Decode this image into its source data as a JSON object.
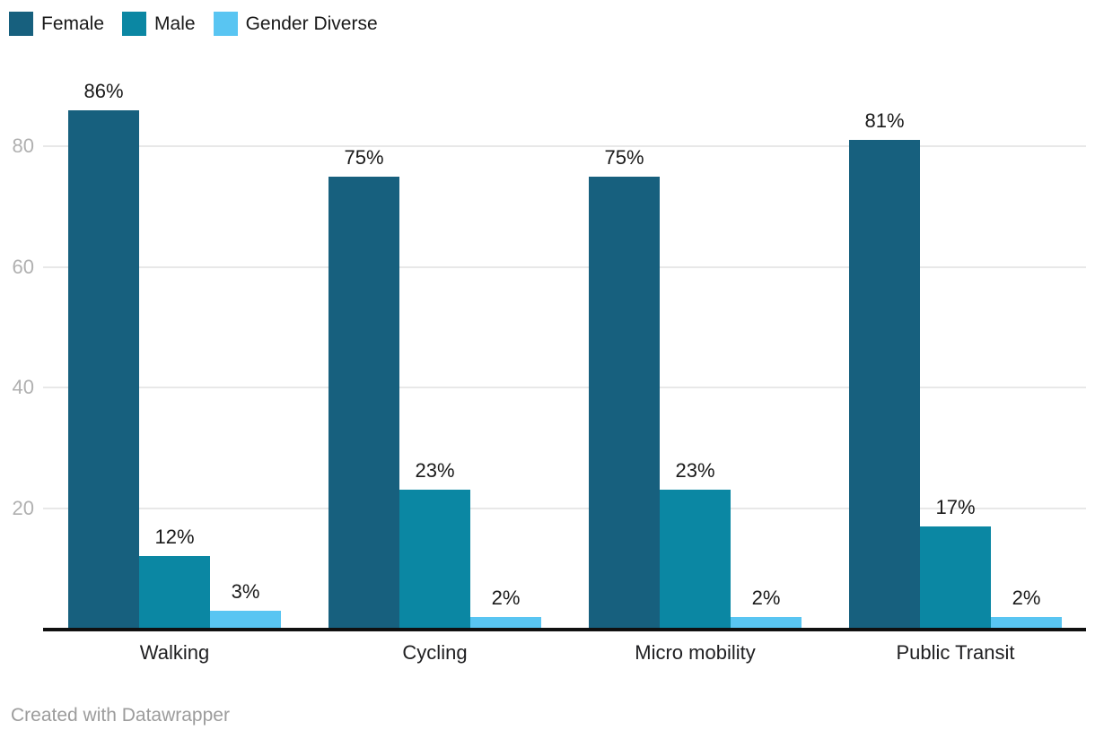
{
  "legend": {
    "items": [
      {
        "label": "Female",
        "color": "#17607e"
      },
      {
        "label": "Male",
        "color": "#0b87a3"
      },
      {
        "label": "Gender Diverse",
        "color": "#59c5f2"
      }
    ]
  },
  "footer": {
    "text": "Created with Datawrapper"
  },
  "colors": {
    "gridline": "#e8e8e8",
    "axis_line": "#101010",
    "y_tick_text": "#b0b0b0",
    "value_label_text": "#1a1a1a",
    "credit_text": "#9c9c9c"
  },
  "chart_data": {
    "type": "bar",
    "title": "",
    "categories": [
      "Walking",
      "Cycling",
      "Micro mobility",
      "Public Transit"
    ],
    "series": [
      {
        "name": "Female",
        "color": "#17607e",
        "values": [
          86,
          75,
          75,
          81
        ]
      },
      {
        "name": "Male",
        "color": "#0b87a3",
        "values": [
          12,
          23,
          23,
          17
        ]
      },
      {
        "name": "Gender Diverse",
        "color": "#59c5f2",
        "values": [
          3,
          2,
          2,
          2
        ]
      }
    ],
    "value_suffix": "%",
    "value_labels": true,
    "yticks": [
      20,
      40,
      60,
      80
    ],
    "ylim": [
      0,
      90
    ],
    "grid": "horizontal",
    "legend_position": "top-left",
    "xlabel": "",
    "ylabel": ""
  }
}
